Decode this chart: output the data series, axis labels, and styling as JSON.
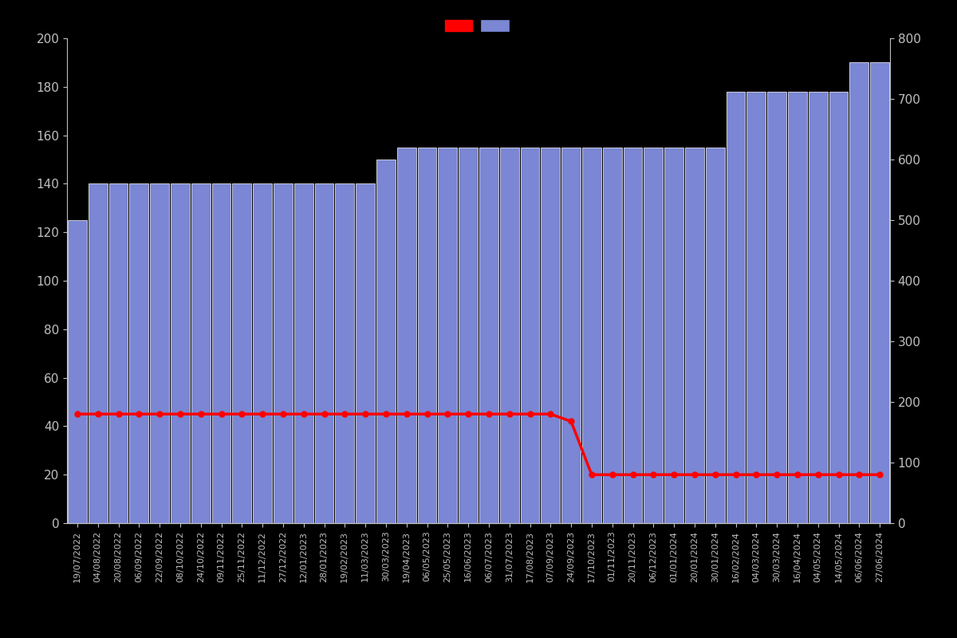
{
  "dates": [
    "19/07/2022",
    "04/08/2022",
    "20/08/2022",
    "06/09/2022",
    "22/09/2022",
    "08/10/2022",
    "24/10/2022",
    "09/11/2022",
    "25/11/2022",
    "11/12/2022",
    "27/12/2022",
    "12/01/2023",
    "28/01/2023",
    "19/02/2023",
    "11/03/2023",
    "30/03/2023",
    "19/04/2023",
    "06/05/2023",
    "25/05/2023",
    "16/06/2023",
    "06/07/2023",
    "31/07/2023",
    "17/08/2023",
    "07/09/2023",
    "24/09/2023",
    "17/10/2023",
    "01/11/2023",
    "20/11/2023",
    "06/12/2023",
    "01/01/2024",
    "20/01/2024",
    "30/01/2024",
    "16/02/2024",
    "04/03/2024",
    "30/03/2024",
    "16/04/2024",
    "04/05/2024",
    "14/05/2024",
    "06/06/2024",
    "27/06/2024"
  ],
  "dates_display": [
    "19/07/2022",
    "04/08/2022",
    "20/08/2022",
    "06/09/2022",
    "22/09/2022",
    "08/10/2022",
    "24/10/2022",
    "09/11/2022",
    "25/11/2022",
    "11/12/2022",
    "27/12/2022",
    "12/01/2023",
    "28/01/2023",
    "19/02/2023",
    "11/03/2023",
    "30/03/2023",
    "19/04/2023",
    "06/05/2023",
    "25/05/2023",
    "16/06/2023",
    "06/07/2023",
    "31/07/2023",
    "17/08/2023",
    "07/09/2023",
    "24/09/2023",
    "17/10/2023",
    "01/11/2023",
    "20/11/2023",
    "06/12/2023",
    "01/01/2024",
    "20/01/2024",
    "30/01/2024",
    "16/02/2024",
    "04/03/2024",
    "30/03/2024",
    "16/04/2024",
    "04/05/2024",
    "14/05/2024",
    "06/06/2024",
    "27/06/2024"
  ],
  "bar_values": [
    125,
    140,
    140,
    140,
    140,
    140,
    140,
    140,
    140,
    140,
    140,
    140,
    140,
    140,
    140,
    150,
    155,
    155,
    155,
    155,
    155,
    155,
    155,
    155,
    155,
    155,
    155,
    155,
    155,
    155,
    155,
    155,
    178,
    178,
    178,
    178,
    178,
    178,
    190,
    190
  ],
  "line_values": [
    45,
    45,
    45,
    45,
    45,
    45,
    45,
    45,
    45,
    45,
    45,
    45,
    45,
    45,
    45,
    45,
    45,
    45,
    45,
    45,
    45,
    45,
    45,
    45,
    42,
    20,
    20,
    20,
    20,
    20,
    20,
    20,
    20,
    20,
    20,
    20,
    20,
    20,
    20,
    20
  ],
  "bar_color": "#7b86d4",
  "bar_edge_color": "#ffffff",
  "line_color": "#ff0000",
  "background_color": "#000000",
  "text_color": "#c0c0c0",
  "left_ylim": [
    0,
    200
  ],
  "right_ylim": [
    0,
    800
  ],
  "left_yticks": [
    0,
    20,
    40,
    60,
    80,
    100,
    120,
    140,
    160,
    180,
    200
  ],
  "right_yticks": [
    0,
    100,
    200,
    300,
    400,
    500,
    600,
    700,
    800
  ],
  "figsize": [
    12,
    8
  ]
}
